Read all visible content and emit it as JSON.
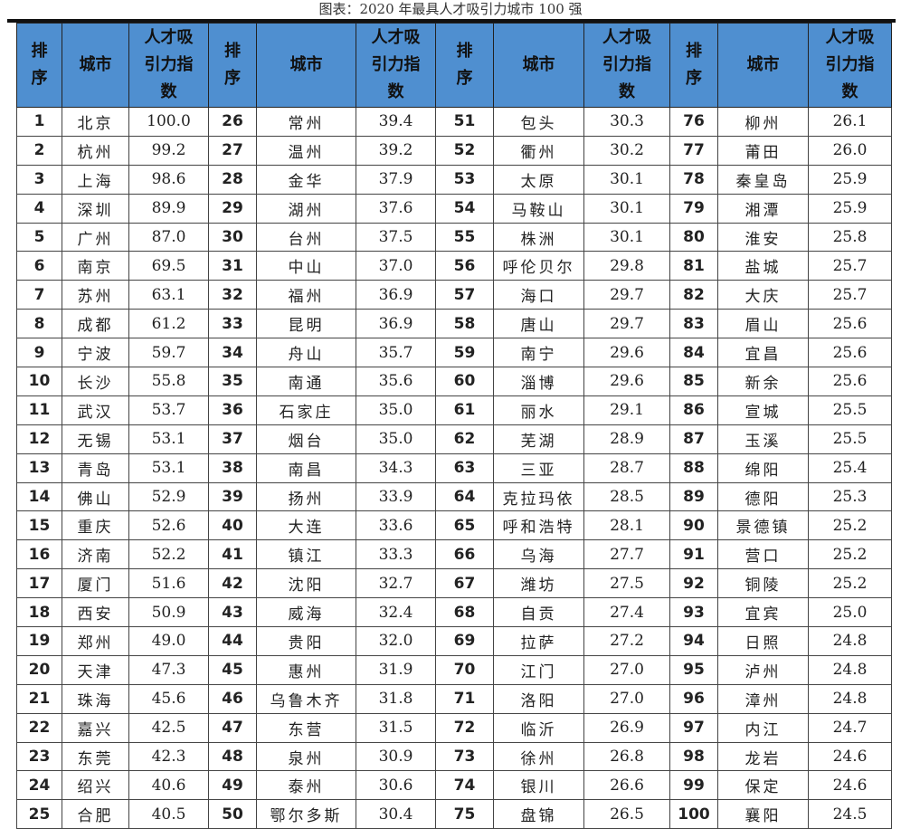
{
  "title": "图表：2020 年最具人才吸引力城市 100 强",
  "headers": {
    "rank": "排序",
    "city": "城市",
    "index": "人才吸引力指数"
  },
  "rows": [
    [
      "1",
      "北京",
      "100.0"
    ],
    [
      "2",
      "杭州",
      "99.2"
    ],
    [
      "3",
      "上海",
      "98.6"
    ],
    [
      "4",
      "深圳",
      "89.9"
    ],
    [
      "5",
      "广州",
      "87.0"
    ],
    [
      "6",
      "南京",
      "69.5"
    ],
    [
      "7",
      "苏州",
      "63.1"
    ],
    [
      "8",
      "成都",
      "61.2"
    ],
    [
      "9",
      "宁波",
      "59.7"
    ],
    [
      "10",
      "长沙",
      "55.8"
    ],
    [
      "11",
      "武汉",
      "53.7"
    ],
    [
      "12",
      "无锡",
      "53.1"
    ],
    [
      "13",
      "青岛",
      "53.1"
    ],
    [
      "14",
      "佛山",
      "52.9"
    ],
    [
      "15",
      "重庆",
      "52.6"
    ],
    [
      "16",
      "济南",
      "52.2"
    ],
    [
      "17",
      "厦门",
      "51.6"
    ],
    [
      "18",
      "西安",
      "50.9"
    ],
    [
      "19",
      "郑州",
      "49.0"
    ],
    [
      "20",
      "天津",
      "47.3"
    ],
    [
      "21",
      "珠海",
      "45.6"
    ],
    [
      "22",
      "嘉兴",
      "42.5"
    ],
    [
      "23",
      "东莞",
      "42.3"
    ],
    [
      "24",
      "绍兴",
      "40.6"
    ],
    [
      "25",
      "合肥",
      "40.5"
    ],
    [
      "26",
      "常州",
      "39.4"
    ],
    [
      "27",
      "温州",
      "39.2"
    ],
    [
      "28",
      "金华",
      "37.9"
    ],
    [
      "29",
      "湖州",
      "37.6"
    ],
    [
      "30",
      "台州",
      "37.5"
    ],
    [
      "31",
      "中山",
      "37.0"
    ],
    [
      "32",
      "福州",
      "36.9"
    ],
    [
      "33",
      "昆明",
      "36.9"
    ],
    [
      "34",
      "舟山",
      "35.7"
    ],
    [
      "35",
      "南通",
      "35.6"
    ],
    [
      "36",
      "石家庄",
      "35.0"
    ],
    [
      "37",
      "烟台",
      "35.0"
    ],
    [
      "38",
      "南昌",
      "34.3"
    ],
    [
      "39",
      "扬州",
      "33.9"
    ],
    [
      "40",
      "大连",
      "33.6"
    ],
    [
      "41",
      "镇江",
      "33.3"
    ],
    [
      "42",
      "沈阳",
      "32.7"
    ],
    [
      "43",
      "威海",
      "32.4"
    ],
    [
      "44",
      "贵阳",
      "32.0"
    ],
    [
      "45",
      "惠州",
      "31.9"
    ],
    [
      "46",
      "乌鲁木齐",
      "31.8"
    ],
    [
      "47",
      "东营",
      "31.5"
    ],
    [
      "48",
      "泉州",
      "30.9"
    ],
    [
      "49",
      "泰州",
      "30.6"
    ],
    [
      "50",
      "鄂尔多斯",
      "30.4"
    ],
    [
      "51",
      "包头",
      "30.3"
    ],
    [
      "52",
      "衢州",
      "30.2"
    ],
    [
      "53",
      "太原",
      "30.1"
    ],
    [
      "54",
      "马鞍山",
      "30.1"
    ],
    [
      "55",
      "株洲",
      "30.1"
    ],
    [
      "56",
      "呼伦贝尔",
      "29.8"
    ],
    [
      "57",
      "海口",
      "29.7"
    ],
    [
      "58",
      "唐山",
      "29.7"
    ],
    [
      "59",
      "南宁",
      "29.6"
    ],
    [
      "60",
      "淄博",
      "29.6"
    ],
    [
      "61",
      "丽水",
      "29.1"
    ],
    [
      "62",
      "芜湖",
      "28.9"
    ],
    [
      "63",
      "三亚",
      "28.7"
    ],
    [
      "64",
      "克拉玛依",
      "28.5"
    ],
    [
      "65",
      "呼和浩特",
      "28.1"
    ],
    [
      "66",
      "乌海",
      "27.7"
    ],
    [
      "67",
      "潍坊",
      "27.5"
    ],
    [
      "68",
      "自贡",
      "27.4"
    ],
    [
      "69",
      "拉萨",
      "27.2"
    ],
    [
      "70",
      "江门",
      "27.0"
    ],
    [
      "71",
      "洛阳",
      "27.0"
    ],
    [
      "72",
      "临沂",
      "26.9"
    ],
    [
      "73",
      "徐州",
      "26.8"
    ],
    [
      "74",
      "银川",
      "26.6"
    ],
    [
      "75",
      "盘锦",
      "26.5"
    ],
    [
      "76",
      "柳州",
      "26.1"
    ],
    [
      "77",
      "莆田",
      "26.0"
    ],
    [
      "78",
      "秦皇岛",
      "25.9"
    ],
    [
      "79",
      "湘潭",
      "25.9"
    ],
    [
      "80",
      "淮安",
      "25.8"
    ],
    [
      "81",
      "盐城",
      "25.7"
    ],
    [
      "82",
      "大庆",
      "25.7"
    ],
    [
      "83",
      "眉山",
      "25.6"
    ],
    [
      "84",
      "宜昌",
      "25.6"
    ],
    [
      "85",
      "新余",
      "25.6"
    ],
    [
      "86",
      "宣城",
      "25.5"
    ],
    [
      "87",
      "玉溪",
      "25.5"
    ],
    [
      "88",
      "绵阳",
      "25.4"
    ],
    [
      "89",
      "德阳",
      "25.3"
    ],
    [
      "90",
      "景德镇",
      "25.2"
    ],
    [
      "91",
      "营口",
      "25.2"
    ],
    [
      "92",
      "铜陵",
      "25.2"
    ],
    [
      "93",
      "宜宾",
      "25.0"
    ],
    [
      "94",
      "日照",
      "24.8"
    ],
    [
      "95",
      "泸州",
      "24.8"
    ],
    [
      "96",
      "漳州",
      "24.8"
    ],
    [
      "97",
      "内江",
      "24.7"
    ],
    [
      "98",
      "龙岩",
      "24.6"
    ],
    [
      "99",
      "保定",
      "24.6"
    ],
    [
      "100",
      "襄阳",
      "24.5"
    ]
  ],
  "colors": {
    "header_bg": "#4f8fd0"
  }
}
